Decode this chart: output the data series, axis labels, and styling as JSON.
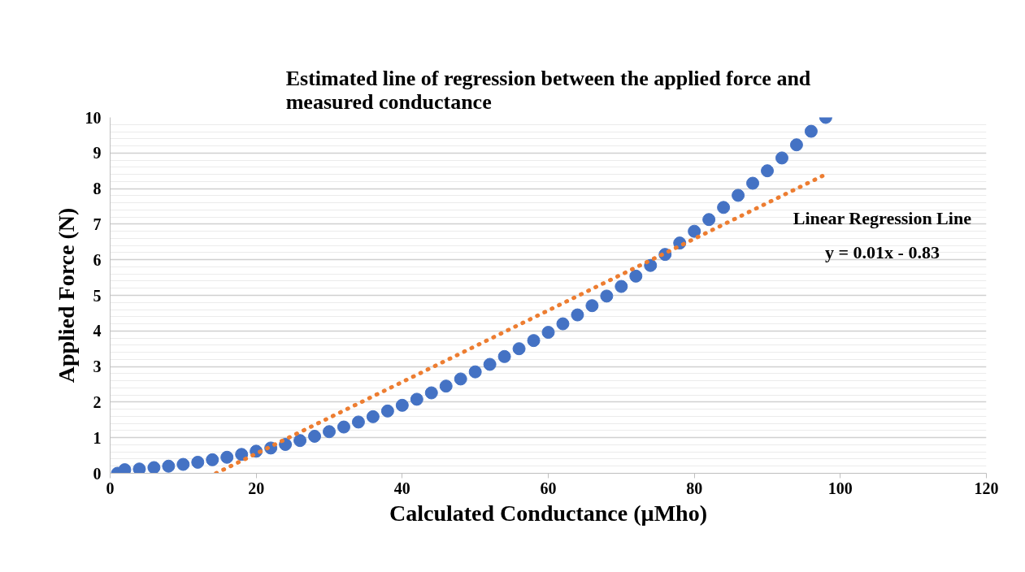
{
  "chart_data": {
    "type": "scatter",
    "title": "Estimated line of regression between the applied force and measured conductance",
    "xlabel": "Calculated Conductance (µMho)",
    "ylabel": "Applied Force (N)",
    "x": [
      1,
      2,
      4,
      6,
      8,
      10,
      12,
      14,
      16,
      18,
      20,
      22,
      24,
      26,
      28,
      30,
      32,
      34,
      36,
      38,
      40,
      42,
      44,
      46,
      48,
      50,
      52,
      54,
      56,
      58,
      60,
      62,
      64,
      66,
      68,
      70,
      72,
      74,
      76,
      78,
      80,
      82,
      84,
      86,
      88,
      90,
      92,
      94,
      96,
      98
    ],
    "series": [
      {
        "color": "#4472c4",
        "marker": "circle",
        "values": [
          0,
          0.1,
          0.12,
          0.16,
          0.2,
          0.25,
          0.31,
          0.38,
          0.45,
          0.53,
          0.62,
          0.71,
          0.81,
          0.92,
          1.04,
          1.17,
          1.3,
          1.44,
          1.59,
          1.75,
          1.91,
          2.08,
          2.26,
          2.45,
          2.65,
          2.85,
          3.06,
          3.28,
          3.5,
          3.73,
          3.96,
          4.2,
          4.45,
          4.71,
          4.98,
          5.25,
          5.54,
          5.84,
          6.15,
          6.47,
          6.8,
          7.13,
          7.47,
          7.81,
          8.15,
          8.5,
          8.86,
          9.23,
          9.61,
          10
        ]
      },
      {
        "type": "line",
        "color": "#ed7d31",
        "line_style": "dotted",
        "x": [
          14.5,
          98
        ],
        "values": [
          0,
          8.4
        ]
      }
    ],
    "annotations": [
      "Linear Regression Line",
      "y = 0.01x - 0.83"
    ],
    "xlim": [
      0,
      120
    ],
    "xticks": [
      0,
      20,
      40,
      60,
      80,
      100,
      120
    ],
    "ylim": [
      0,
      10
    ],
    "yticks": [
      0,
      1,
      2,
      3,
      4,
      5,
      6,
      7,
      8,
      9,
      10
    ],
    "grid": "y"
  }
}
